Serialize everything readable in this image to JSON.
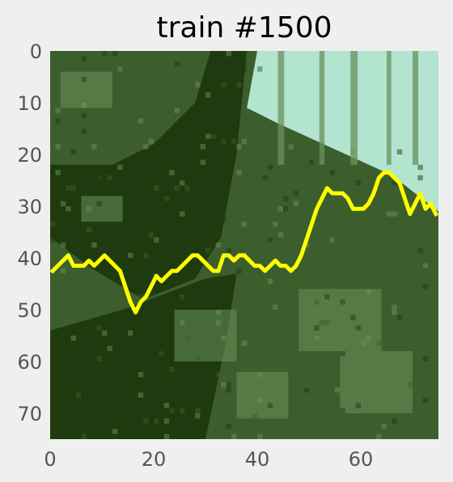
{
  "chart_data": {
    "type": "heatmap",
    "title": "train #1500",
    "image_size": [
      75,
      75
    ],
    "xlim": [
      0,
      75
    ],
    "ylim": [
      75,
      0
    ],
    "x_ticks": [
      0,
      20,
      40,
      60
    ],
    "y_ticks": [
      0,
      10,
      20,
      30,
      40,
      50,
      60,
      70
    ],
    "x_tick_labels": [
      "0",
      "20",
      "40",
      "60"
    ],
    "y_tick_labels": [
      "0",
      "10",
      "20",
      "30",
      "40",
      "50",
      "60",
      "70"
    ],
    "xlabel": "",
    "ylabel": "",
    "grid": false,
    "colors": {
      "background": "#efefef",
      "sky": "#b3e4d0",
      "dark_foliage": "#1e3a0e",
      "mid_foliage": "#3c5e2c",
      "light_foliage": "#6a915c",
      "overlay_line": "#ffff00"
    },
    "overlay_line": {
      "name": "path",
      "x": [
        0,
        1,
        2,
        3,
        4,
        5,
        6,
        7,
        8,
        9,
        10,
        11,
        12,
        13,
        14,
        15,
        16,
        17,
        18,
        19,
        20,
        21,
        22,
        23,
        24,
        25,
        26,
        27,
        28,
        29,
        30,
        31,
        32,
        33,
        34,
        35,
        36,
        37,
        38,
        39,
        40,
        41,
        42,
        43,
        44,
        45,
        46,
        47,
        48,
        49,
        50,
        51,
        52,
        53,
        54,
        55,
        56,
        57,
        58,
        59,
        60,
        61,
        62,
        63,
        64,
        65,
        66,
        67,
        68,
        69,
        70,
        71,
        72,
        73,
        74
      ],
      "y": [
        42,
        41,
        40,
        39,
        41,
        41,
        41,
        40,
        41,
        40,
        39,
        40,
        41,
        42,
        45,
        48,
        50,
        48,
        47,
        45,
        43,
        44,
        43,
        42,
        42,
        41,
        40,
        39,
        39,
        40,
        41,
        42,
        42,
        39,
        39,
        40,
        39,
        39,
        40,
        41,
        41,
        42,
        41,
        40,
        41,
        41,
        42,
        41,
        39,
        36,
        33,
        30,
        28,
        26,
        27,
        27,
        27,
        28,
        30,
        30,
        30,
        29,
        27,
        24,
        23,
        23,
        24,
        25,
        28,
        31,
        29,
        27,
        30,
        29,
        31
      ]
    }
  }
}
